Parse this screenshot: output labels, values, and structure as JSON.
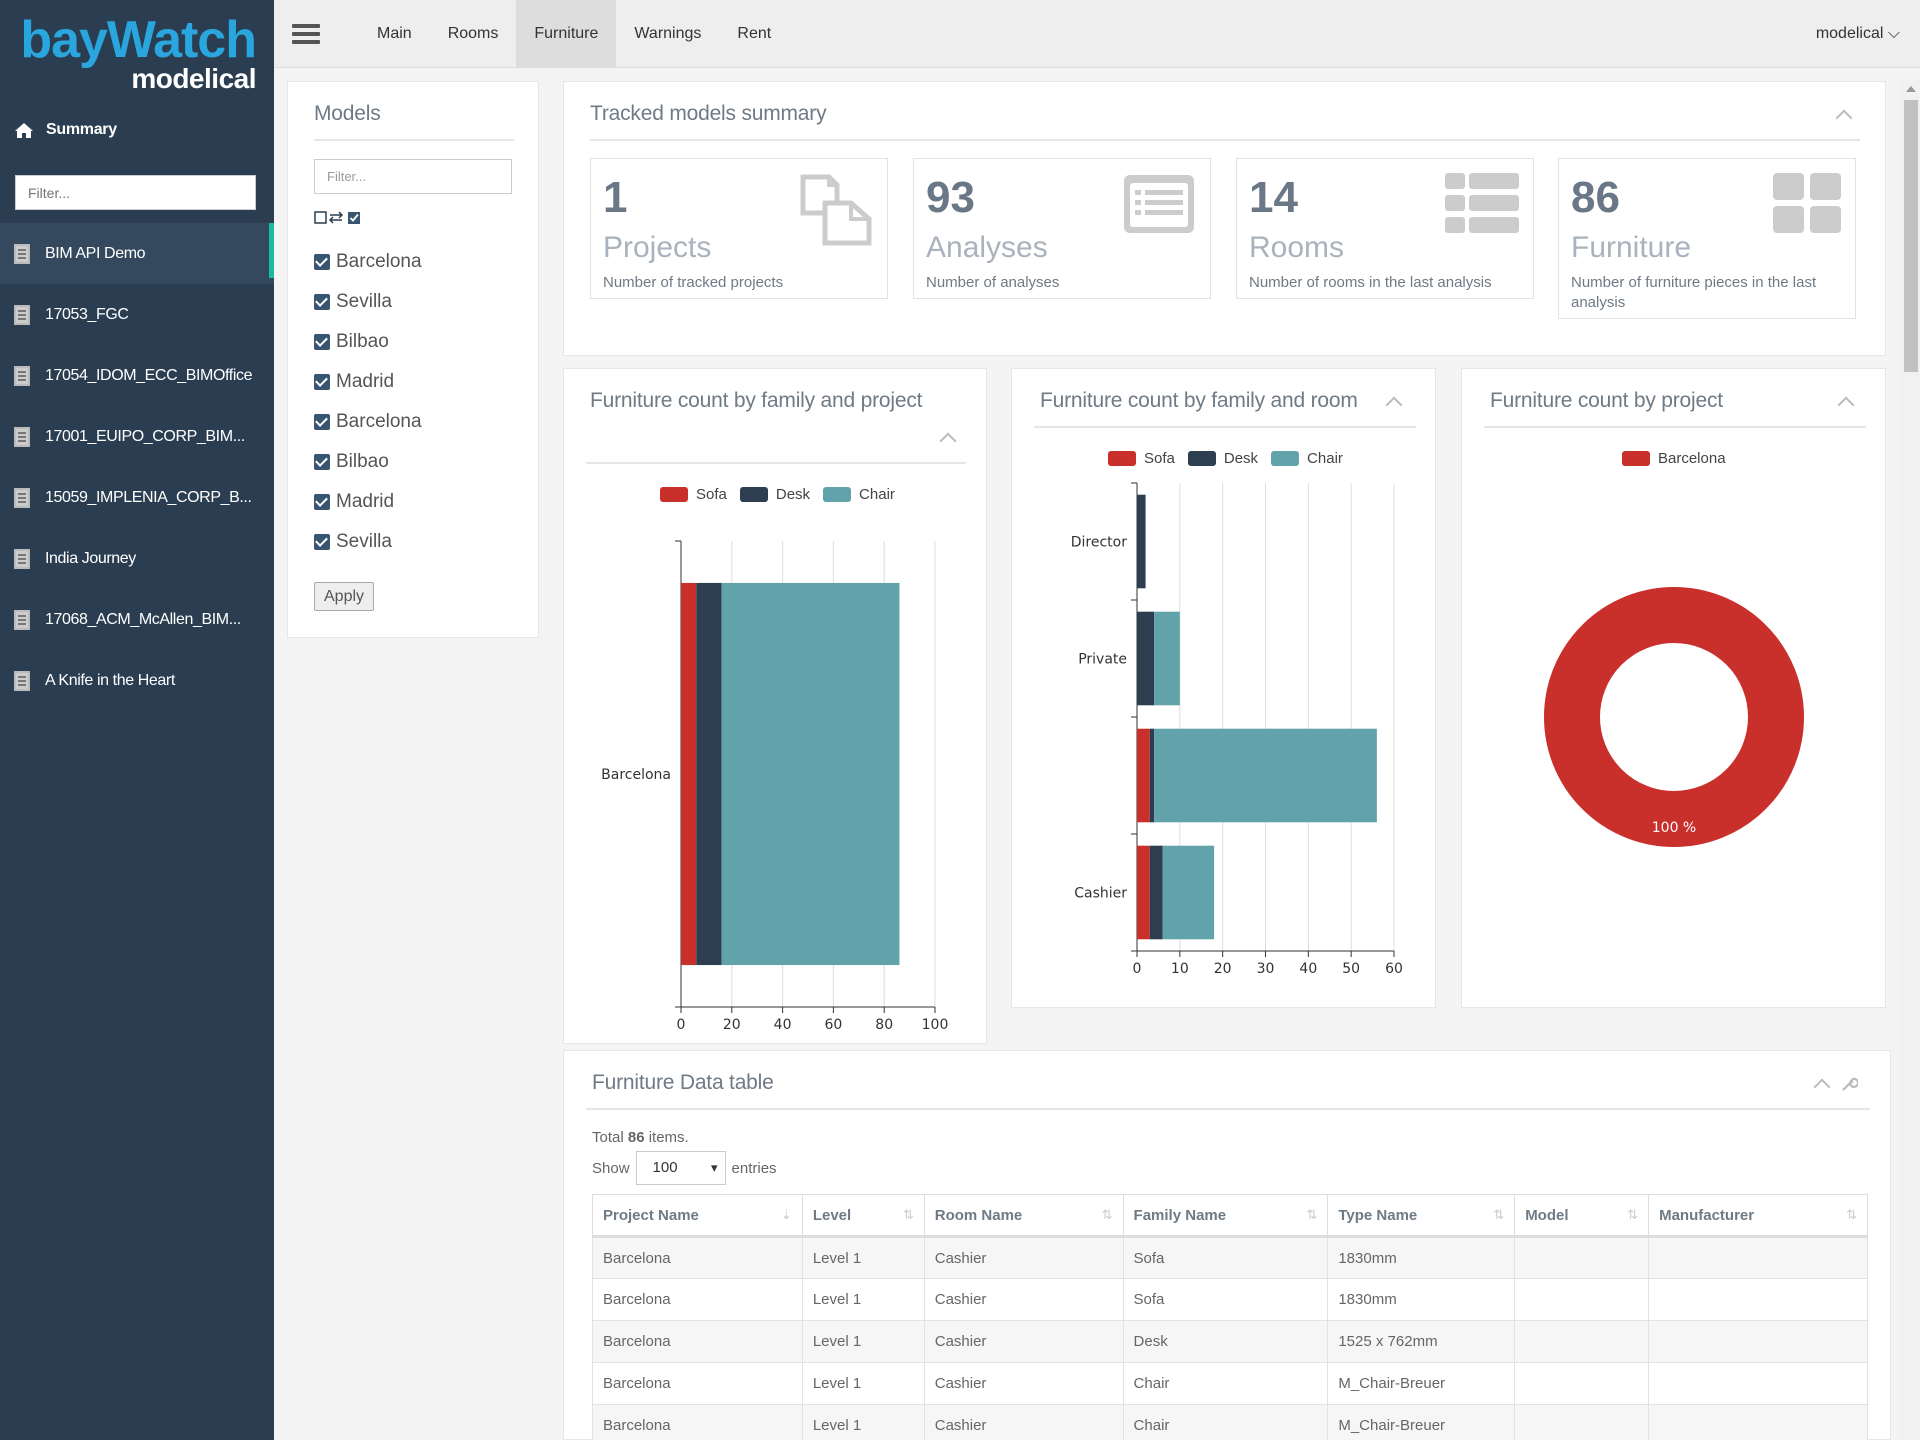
{
  "app": {
    "logo_line1": "bayWatch",
    "logo_line2": "modelical"
  },
  "sidebar": {
    "summary_label": "Summary",
    "filter_placeholder": "Filter...",
    "items": [
      {
        "label": "BIM API Demo",
        "active": true
      },
      {
        "label": "17053_FGC"
      },
      {
        "label": "17054_IDOM_ECC_BIMOffice"
      },
      {
        "label": "17001_EUIPO_CORP_BIM..."
      },
      {
        "label": "15059_IMPLENIA_CORP_B..."
      },
      {
        "label": "India Journey"
      },
      {
        "label": "17068_ACM_McAllen_BIM..."
      },
      {
        "label": "A Knife in the Heart"
      }
    ]
  },
  "topnav": {
    "links": [
      "Main",
      "Rooms",
      "Furniture",
      "Warnings",
      "Rent"
    ],
    "active": "Furniture",
    "user": "modelical ⌵"
  },
  "models": {
    "title": "Models",
    "filter_placeholder": "Filter...",
    "items": [
      "Barcelona",
      "Sevilla",
      "Bilbao",
      "Madrid",
      "Barcelona",
      "Bilbao",
      "Madrid",
      "Sevilla"
    ],
    "apply_label": "Apply"
  },
  "summary": {
    "title": "Tracked models summary",
    "cards": [
      {
        "num": "1",
        "label": "Projects",
        "desc": "Number of tracked projects",
        "icon": "copy-icon"
      },
      {
        "num": "93",
        "label": "Analyses",
        "desc": "Number of analyses",
        "icon": "list-icon"
      },
      {
        "num": "14",
        "label": "Rooms",
        "desc": "Number of rooms in the last analysis",
        "icon": "th-list-icon"
      },
      {
        "num": "86",
        "label": "Furniture",
        "desc": "Number of furniture pieces in the last analysis",
        "icon": "th-large-icon"
      }
    ]
  },
  "colors": {
    "sofa": "#c9302c",
    "desk": "#2c3e50",
    "chair": "#62a3ab"
  },
  "chart_data": [
    {
      "type": "bar",
      "orientation": "horizontal",
      "stacked": true,
      "title": "Furniture count by family and project",
      "categories": [
        "Barcelona"
      ],
      "series": [
        {
          "name": "Sofa",
          "values": [
            6
          ]
        },
        {
          "name": "Desk",
          "values": [
            10
          ]
        },
        {
          "name": "Chair",
          "values": [
            70
          ]
        }
      ],
      "xlim": [
        0,
        100
      ],
      "xticks": [
        0,
        20,
        40,
        60,
        80,
        100
      ],
      "legend": "top",
      "grid": true
    },
    {
      "type": "bar",
      "orientation": "horizontal",
      "stacked": true,
      "title": "Furniture count by family and room",
      "categories": [
        "Director",
        "Private",
        "",
        "Cashier"
      ],
      "series": [
        {
          "name": "Sofa",
          "values": [
            0,
            0,
            3,
            3
          ]
        },
        {
          "name": "Desk",
          "values": [
            2,
            4,
            1,
            3
          ]
        },
        {
          "name": "Chair",
          "values": [
            0,
            6,
            52,
            12
          ]
        }
      ],
      "xlim": [
        0,
        60
      ],
      "xticks": [
        0,
        10,
        20,
        30,
        40,
        50,
        60
      ],
      "legend": "top",
      "grid": true
    },
    {
      "type": "pie",
      "donut": true,
      "title": "Furniture count by project",
      "slices": [
        {
          "name": "Barcelona",
          "value": 100,
          "label": "100 %"
        }
      ],
      "legend": "top"
    }
  ],
  "table": {
    "title": "Furniture Data table",
    "total_prefix": "Total ",
    "total_count": "86",
    "total_suffix": " items.",
    "show_label": "Show",
    "show_value": "100",
    "entries_label": "entries",
    "columns": [
      "Project Name",
      "Level",
      "Room Name",
      "Family Name",
      "Type Name",
      "Model",
      "Manufacturer"
    ],
    "rows": [
      [
        "Barcelona",
        "Level 1",
        "Cashier",
        "Sofa",
        "1830mm",
        "",
        ""
      ],
      [
        "Barcelona",
        "Level 1",
        "Cashier",
        "Sofa",
        "1830mm",
        "",
        ""
      ],
      [
        "Barcelona",
        "Level 1",
        "Cashier",
        "Desk",
        "1525 x 762mm",
        "",
        ""
      ],
      [
        "Barcelona",
        "Level 1",
        "Cashier",
        "Chair",
        "M_Chair-Breuer",
        "",
        ""
      ],
      [
        "Barcelona",
        "Level 1",
        "Cashier",
        "Chair",
        "M_Chair-Breuer",
        "",
        ""
      ]
    ]
  }
}
